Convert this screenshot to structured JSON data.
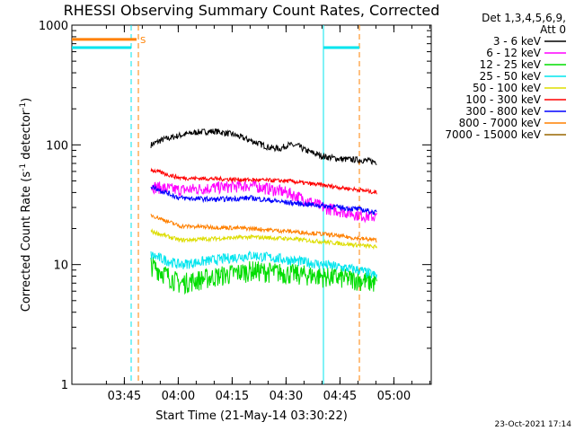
{
  "chart_data": {
    "type": "line",
    "title": "RHESSI Observing Summary Count Rates, Corrected",
    "xlabel": "Start Time (21-May-14 03:30:22)",
    "ylabel_main": "Corrected Count Rate (s",
    "ylabel_sup1": "-1",
    "ylabel_mid": " detector",
    "ylabel_sup2": "-1",
    "ylabel_end": ")",
    "y_scale": "log",
    "ylim": [
      1,
      1000
    ],
    "xlim_minutes_after_start": [
      0,
      100
    ],
    "x_ticks": [
      {
        "label": "03:45",
        "min": 14.6
      },
      {
        "label": "04:00",
        "min": 29.6
      },
      {
        "label": "04:15",
        "min": 44.6
      },
      {
        "label": "04:30",
        "min": 59.6
      },
      {
        "label": "04:45",
        "min": 74.6
      },
      {
        "label": "05:00",
        "min": 89.6
      }
    ],
    "y_ticks": [
      {
        "label": "1",
        "value": 1
      },
      {
        "label": "10",
        "value": 10
      },
      {
        "label": "100",
        "value": 100
      },
      {
        "label": "1000",
        "value": 1000
      }
    ],
    "legend_header_1": "Det 1,3,4,5,6,9,",
    "legend_header_2": "Att 0",
    "series": [
      {
        "name": "3 - 6 keV",
        "color": "#000000",
        "noise": 0.06,
        "x": [
          22,
          25,
          30,
          35,
          40,
          45,
          50,
          55,
          58,
          60,
          63,
          65,
          70,
          75,
          80,
          85
        ],
        "y": [
          100,
          110,
          120,
          128,
          130,
          122,
          108,
          95,
          93,
          100,
          98,
          90,
          80,
          76,
          75,
          72
        ]
      },
      {
        "name": "6 - 12 keV",
        "color": "#ff00ff",
        "noise": 0.12,
        "x": [
          22,
          30,
          40,
          50,
          60,
          65,
          70,
          75,
          80,
          85
        ],
        "y": [
          45,
          42,
          44,
          46,
          40,
          35,
          30,
          28,
          26,
          25
        ]
      },
      {
        "name": "12 - 25 keV",
        "color": "#00dd00",
        "noise": 0.2,
        "x": [
          22,
          30,
          40,
          50,
          60,
          70,
          80,
          85
        ],
        "y": [
          10,
          7,
          8,
          9,
          8.5,
          8,
          7.5,
          7
        ]
      },
      {
        "name": "25 - 50 keV",
        "color": "#00e5ee",
        "noise": 0.1,
        "x": [
          22,
          30,
          40,
          50,
          60,
          70,
          80,
          85
        ],
        "y": [
          12,
          10,
          11,
          12,
          11,
          10,
          9,
          8
        ]
      },
      {
        "name": "50 - 100 keV",
        "color": "#dddd00",
        "noise": 0.04,
        "x": [
          22,
          30,
          40,
          50,
          60,
          70,
          80,
          85
        ],
        "y": [
          19,
          16,
          16.5,
          17,
          16.5,
          15.5,
          14.5,
          14
        ]
      },
      {
        "name": "100 - 300 keV",
        "color": "#ff0000",
        "noise": 0.04,
        "x": [
          22,
          30,
          40,
          50,
          60,
          70,
          80,
          85
        ],
        "y": [
          62,
          53,
          52,
          51,
          50,
          46,
          42,
          40
        ]
      },
      {
        "name": "300 - 800 keV",
        "color": "#0000ff",
        "noise": 0.05,
        "x": [
          22,
          30,
          40,
          50,
          60,
          70,
          80,
          85
        ],
        "y": [
          45,
          36,
          35,
          36,
          33,
          31,
          29,
          27
        ]
      },
      {
        "name": "800 - 7000 keV",
        "color": "#ff8000",
        "noise": 0.04,
        "x": [
          22,
          30,
          40,
          50,
          60,
          70,
          80,
          85
        ],
        "y": [
          26,
          21,
          20.5,
          20,
          19,
          18,
          16.5,
          16
        ]
      },
      {
        "name": "7000 - 15000 keV",
        "color": "#996600",
        "noise": 0,
        "x": [],
        "y": []
      }
    ],
    "attenuator_segments": [
      {
        "color": "#00e5ee",
        "x": [
          0,
          16.5
        ],
        "y": 650
      },
      {
        "color": "#00e5ee",
        "x": [
          70,
          80
        ],
        "y": 650
      }
    ],
    "saa_segments": [
      {
        "color": "#ff8000",
        "x": [
          0,
          18
        ],
        "y": 760,
        "label": "S"
      }
    ],
    "night_markers": [
      {
        "color": "#00e5ee",
        "style": "dashed",
        "min": 16.5
      },
      {
        "color": "#ff8000",
        "style": "dashed",
        "min": 18.5
      },
      {
        "color": "#00e5ee",
        "style": "solid",
        "min": 70
      },
      {
        "color": "#ff8000",
        "style": "dashed",
        "min": 80
      }
    ],
    "timestamp": "23-Oct-2021 17:14"
  }
}
